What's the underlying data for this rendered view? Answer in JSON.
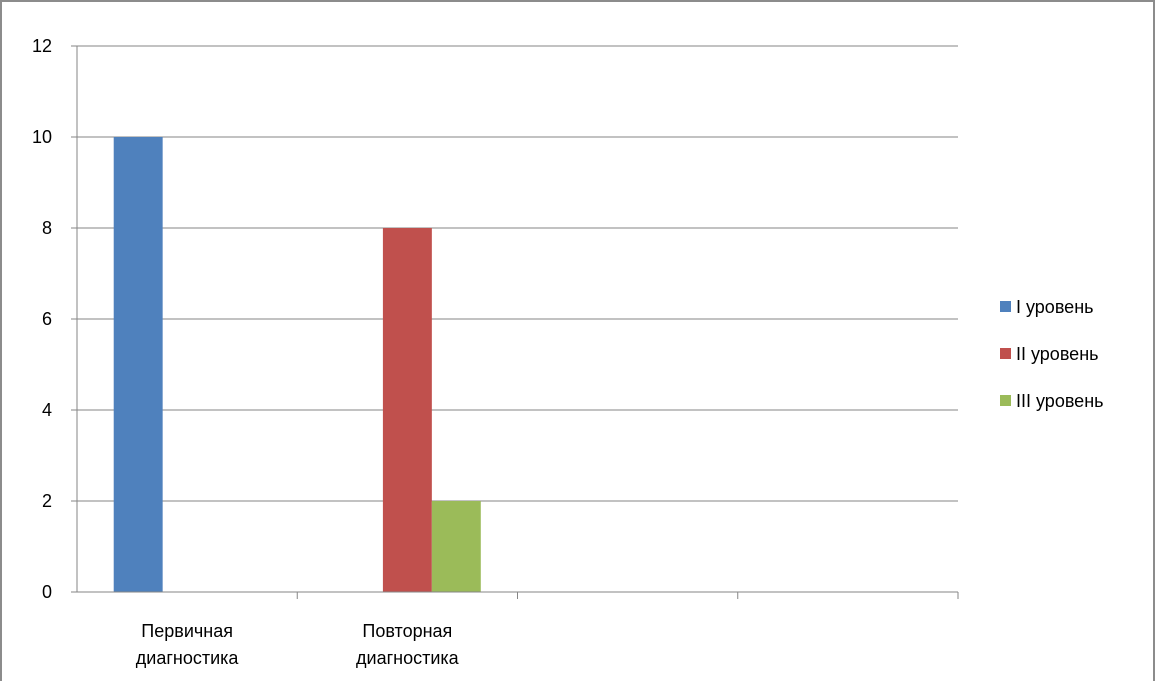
{
  "chart_data": {
    "type": "bar",
    "categories": [
      [
        "Первичная",
        "диагностика"
      ],
      [
        "Повторная",
        "диагностика"
      ],
      [
        "",
        ""
      ],
      [
        "",
        ""
      ]
    ],
    "series": [
      {
        "name": "I уровень",
        "values": [
          10,
          0,
          0,
          0
        ],
        "color": "#4f81bd"
      },
      {
        "name": "II уровень",
        "values": [
          0,
          8,
          0,
          0
        ],
        "color": "#c0504d"
      },
      {
        "name": "III уровень",
        "values": [
          0,
          2,
          0,
          0
        ],
        "color": "#9bbb59"
      }
    ],
    "ylim": [
      0,
      12
    ],
    "yticks": [
      0,
      2,
      4,
      6,
      8,
      10,
      12
    ],
    "grid": true,
    "legend_position": "right"
  }
}
